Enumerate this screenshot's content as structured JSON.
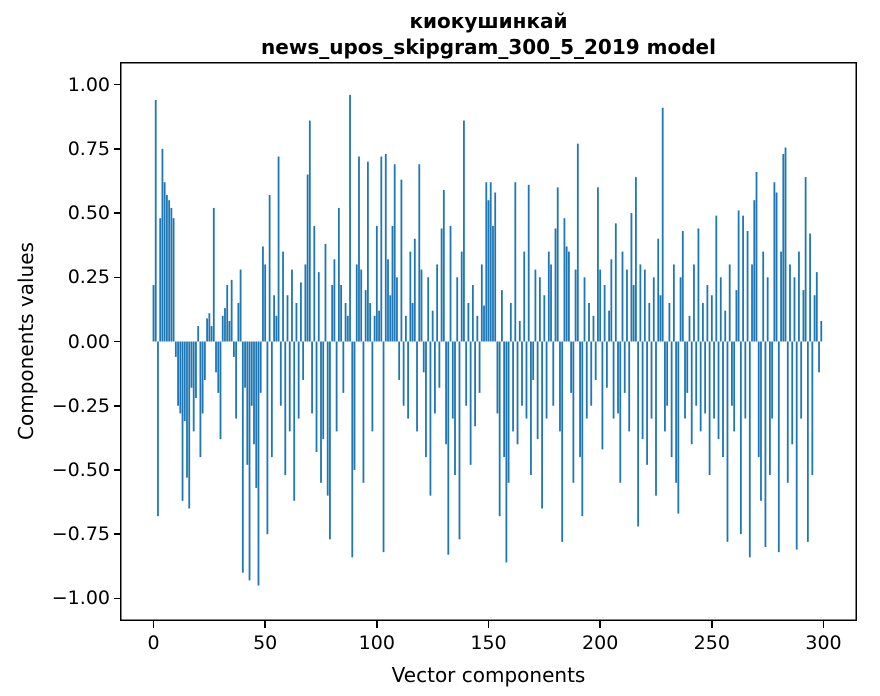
{
  "title": {
    "line1": "киокушинкай",
    "line2": "news_upos_skipgram_300_5_2019 model"
  },
  "colors": {
    "bar": "#1f77b4",
    "spine": "#000000",
    "background": "#ffffff"
  },
  "chart_data": {
    "type": "bar",
    "title": "киокушинкай\nnews_upos_skipgram_300_5_2019 model",
    "xlabel": "Vector components",
    "ylabel": "Components values",
    "legend": null,
    "grid": false,
    "bar_color": "#1f77b4",
    "xlim": [
      -15,
      315
    ],
    "ylim": [
      -1.088,
      1.088
    ],
    "x_ticks": [
      0,
      50,
      100,
      150,
      200,
      250,
      300
    ],
    "y_ticks": [
      1.0,
      0.75,
      0.5,
      0.25,
      0.0,
      -0.25,
      -0.5,
      -0.75,
      -1.0
    ],
    "y_tick_labels": [
      "1.00",
      "0.75",
      "0.50",
      "0.25",
      "0.00",
      "−0.25",
      "−0.50",
      "−0.75",
      "−1.00"
    ],
    "n_components": 300,
    "values": [
      0.22,
      0.94,
      -0.68,
      0.48,
      0.75,
      0.62,
      0.57,
      0.55,
      0.52,
      0.48,
      -0.06,
      -0.25,
      -0.28,
      -0.62,
      -0.31,
      -0.53,
      -0.65,
      -0.18,
      -0.35,
      -0.22,
      0.06,
      -0.45,
      -0.28,
      -0.15,
      0.09,
      0.11,
      0.06,
      0.52,
      -0.12,
      -0.2,
      -0.38,
      0.1,
      0.13,
      0.22,
      0.08,
      0.24,
      -0.06,
      -0.3,
      0.15,
      0.28,
      -0.9,
      -0.18,
      -0.48,
      -0.93,
      -0.25,
      -0.4,
      -0.57,
      -0.95,
      -0.2,
      0.37,
      0.3,
      -0.75,
      0.57,
      -0.45,
      0.18,
      0.1,
      0.72,
      -0.25,
      0.35,
      -0.52,
      0.18,
      -0.35,
      0.28,
      -0.62,
      0.15,
      -0.3,
      0.23,
      -0.15,
      0.3,
      0.65,
      0.86,
      -0.28,
      0.45,
      -0.43,
      0.27,
      -0.55,
      -0.38,
      0.38,
      -0.6,
      -0.77,
      0.22,
      0.32,
      -0.35,
      0.52,
      0.22,
      -0.2,
      0.15,
      0.1,
      0.96,
      -0.84,
      -0.5,
      0.3,
      0.72,
      0.28,
      -0.55,
      0.2,
      0.7,
      0.15,
      -0.35,
      0.1,
      0.45,
      0.12,
      0.72,
      -0.82,
      0.73,
      0.32,
      0.18,
      0.45,
      0.69,
      0.25,
      -0.15,
      0.63,
      -0.25,
      0.1,
      -0.3,
      0.35,
      0.15,
      0.4,
      -0.35,
      0.69,
      0.28,
      -0.12,
      -0.45,
      0.25,
      -0.6,
      0.12,
      -0.28,
      0.3,
      -0.18,
      0.44,
      0.59,
      -0.4,
      -0.83,
      0.45,
      -0.3,
      -0.52,
      0.25,
      -0.77,
      0.35,
      0.86,
      -0.25,
      0.15,
      -0.48,
      0.22,
      -0.33,
      0.1,
      -0.2,
      0.3,
      0.14,
      0.62,
      0.55,
      0.62,
      0.45,
      0.58,
      -0.28,
      -0.68,
      0.2,
      -0.45,
      -0.86,
      -0.55,
      0.15,
      -0.35,
      0.62,
      -0.4,
      0.08,
      -0.25,
      0.35,
      -0.3,
      0.61,
      -0.52,
      -0.15,
      0.28,
      -0.38,
      0.25,
      -0.65,
      0.18,
      -0.3,
      0.35,
      0.3,
      -0.25,
      0.44,
      0.6,
      -0.35,
      -0.78,
      0.48,
      0.37,
      0.35,
      -0.2,
      -0.55,
      0.28,
      0.77,
      -0.45,
      -0.68,
      0.25,
      -0.3,
      0.15,
      -0.25,
      0.1,
      -0.15,
      0.6,
      0.28,
      -0.42,
      0.22,
      -0.18,
      0.12,
      0.32,
      -0.3,
      0.46,
      -0.28,
      -0.55,
      0.35,
      -0.2,
      0.28,
      -0.35,
      0.5,
      0.22,
      0.64,
      -0.72,
      0.3,
      -0.38,
      0.28,
      -0.48,
      0.15,
      -0.3,
      0.25,
      -0.6,
      0.4,
      0.18,
      0.91,
      -0.35,
      -0.25,
      0.15,
      -0.45,
      0.3,
      -0.55,
      -0.67,
      0.25,
      0.43,
      -0.3,
      -0.2,
      0.1,
      -0.4,
      0.3,
      -0.25,
      0.44,
      -0.35,
      0.15,
      -0.28,
      0.22,
      -0.52,
      0.18,
      -0.3,
      0.49,
      -0.38,
      0.25,
      -0.45,
      0.12,
      -0.78,
      0.3,
      -0.25,
      -0.35,
      0.2,
      0.51,
      -0.75,
      0.49,
      -0.3,
      0.43,
      -0.84,
      0.3,
      0.55,
      0.66,
      -0.45,
      -0.62,
      0.35,
      -0.8,
      0.25,
      -0.52,
      -0.3,
      0.62,
      0.58,
      -0.82,
      0.35,
      0.73,
      0.755,
      -0.55,
      0.3,
      -0.4,
      0.25,
      -0.81,
      0.35,
      -0.3,
      0.2,
      0.64,
      -0.78,
      0.42,
      -0.52,
      0.18,
      0.27,
      -0.12,
      0.08
    ]
  }
}
